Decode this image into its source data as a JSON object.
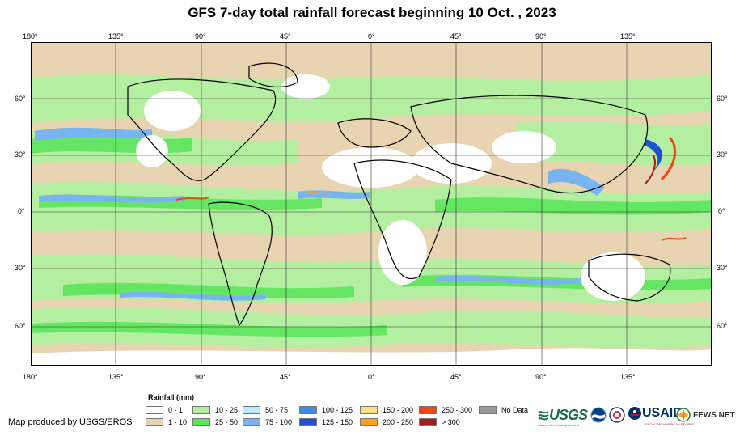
{
  "title": "GFS 7-day total rainfall forecast beginning 10 Oct. , 2023",
  "longitude_ticks": [
    "180°",
    "135°",
    "90°",
    "45°",
    "0°",
    "45°",
    "90°",
    "135°"
  ],
  "latitude_ticks": [
    "60°",
    "30°",
    "0°",
    "30°",
    "60°"
  ],
  "legend": {
    "title": "Rainfall (mm)",
    "items": [
      {
        "label": "0 - 1",
        "color": "#ffffff"
      },
      {
        "label": "1 - 10",
        "color": "#e8d4b0"
      },
      {
        "label": "10 - 25",
        "color": "#b2f0a0"
      },
      {
        "label": "25 - 50",
        "color": "#5ce65c"
      },
      {
        "label": "50 - 75",
        "color": "#b8ecf8"
      },
      {
        "label": "75 - 100",
        "color": "#78b4f0"
      },
      {
        "label": "100 - 125",
        "color": "#3c8ce6"
      },
      {
        "label": "125 - 150",
        "color": "#1e50d2"
      },
      {
        "label": "150 - 200",
        "color": "#fce282"
      },
      {
        "label": "200 - 250",
        "color": "#fca01e"
      },
      {
        "label": "250 - 300",
        "color": "#f04614"
      },
      {
        "label": "> 300",
        "color": "#a01e1e"
      },
      {
        "label": "No Data",
        "color": "#9a9a9a"
      }
    ]
  },
  "credit": "Map produced by USGS/EROS",
  "logos": {
    "usgs": "USGS",
    "usgs_tagline": "science for a changing world",
    "usaid": "USAID",
    "usaid_tagline": "FROM THE AMERICAN PEOPLE",
    "fews": "FEWS NET",
    "noaa_icon": "noaa-logo-icon",
    "nasa_icon": "seal-icon"
  }
}
